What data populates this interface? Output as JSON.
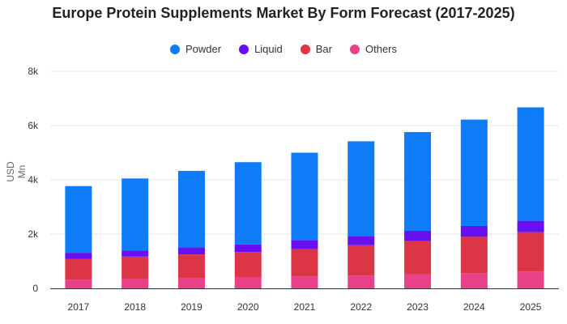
{
  "chart_data": {
    "type": "bar",
    "stacked": true,
    "title": "Europe Protein Supplements Market By Form Forecast (2017-2025)",
    "xlabel": "",
    "ylabel": "USD Mn",
    "categories": [
      "2017",
      "2018",
      "2019",
      "2020",
      "2021",
      "2022",
      "2023",
      "2024",
      "2025"
    ],
    "ylim": [
      0,
      8000
    ],
    "yticks": [
      0,
      2000,
      4000,
      6000,
      8000
    ],
    "ytick_labels": [
      "0",
      "2k",
      "4k",
      "6k",
      "8k"
    ],
    "grid": true,
    "legend_position": "top",
    "series": [
      {
        "name": "Others",
        "color": "#e8418a",
        "values": [
          320,
          340,
          370,
          400,
          440,
          470,
          520,
          560,
          620
        ]
      },
      {
        "name": "Bar",
        "color": "#dc3545",
        "values": [
          770,
          830,
          880,
          940,
          1010,
          1120,
          1220,
          1340,
          1450
        ]
      },
      {
        "name": "Liquid",
        "color": "#6610f2",
        "values": [
          220,
          220,
          260,
          280,
          330,
          340,
          380,
          400,
          420
        ]
      },
      {
        "name": "Powder",
        "color": "#0d7cf6",
        "values": [
          2460,
          2660,
          2820,
          3030,
          3220,
          3490,
          3640,
          3920,
          4180
        ]
      }
    ],
    "legend_order": [
      "Powder",
      "Liquid",
      "Bar",
      "Others"
    ]
  }
}
